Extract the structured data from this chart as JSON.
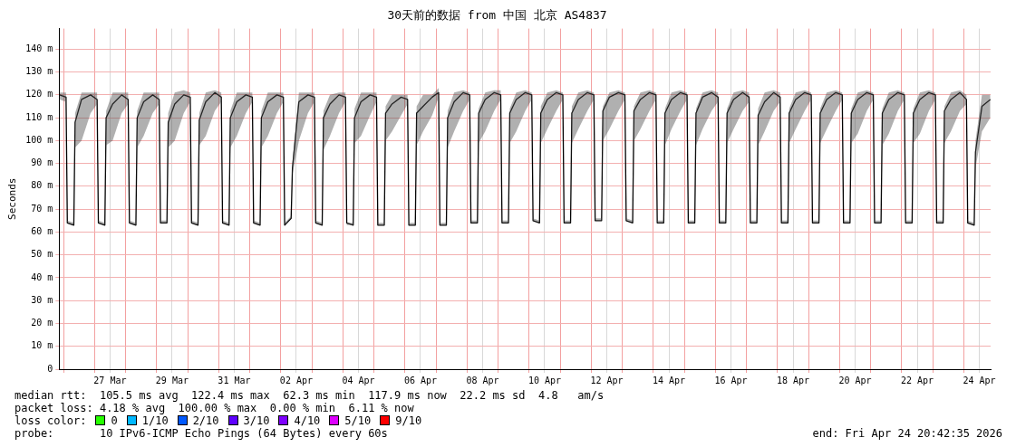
{
  "chart_data": {
    "type": "line",
    "title": "30天前的数据 from 中国 北京 AS4837",
    "ylabel": "Seconds",
    "xlim": [
      "2026-03-25T20:42",
      "2026-04-24T20:42"
    ],
    "xticks": [
      {
        "value": "2026-03-26",
        "label": null
      },
      {
        "value": "2026-03-27",
        "label": null
      },
      {
        "value": "2026-03-27T12:00",
        "label": "27 Mar"
      },
      {
        "value": "2026-03-28",
        "label": null
      },
      {
        "value": "2026-03-29",
        "label": null
      },
      {
        "value": "2026-03-29T12:00",
        "label": "29 Mar"
      },
      {
        "value": "2026-03-30",
        "label": null
      },
      {
        "value": "2026-03-31",
        "label": null
      },
      {
        "value": "2026-03-31T12:00",
        "label": "31 Mar"
      },
      {
        "value": "2026-04-01",
        "label": null
      },
      {
        "value": "2026-04-02",
        "label": null
      },
      {
        "value": "2026-04-02T12:00",
        "label": "02 Apr"
      },
      {
        "value": "2026-04-03",
        "label": null
      },
      {
        "value": "2026-04-04",
        "label": null
      },
      {
        "value": "2026-04-04T12:00",
        "label": "04 Apr"
      },
      {
        "value": "2026-04-05",
        "label": null
      },
      {
        "value": "2026-04-06",
        "label": null
      },
      {
        "value": "2026-04-06T12:00",
        "label": "06 Apr"
      },
      {
        "value": "2026-04-07",
        "label": null
      },
      {
        "value": "2026-04-08",
        "label": null
      },
      {
        "value": "2026-04-08T12:00",
        "label": "08 Apr"
      },
      {
        "value": "2026-04-09",
        "label": null
      },
      {
        "value": "2026-04-10",
        "label": null
      },
      {
        "value": "2026-04-10T12:00",
        "label": "10 Apr"
      },
      {
        "value": "2026-04-11",
        "label": null
      },
      {
        "value": "2026-04-12",
        "label": null
      },
      {
        "value": "2026-04-12T12:00",
        "label": "12 Apr"
      },
      {
        "value": "2026-04-13",
        "label": null
      },
      {
        "value": "2026-04-14",
        "label": null
      },
      {
        "value": "2026-04-14T12:00",
        "label": "14 Apr"
      },
      {
        "value": "2026-04-15",
        "label": null
      },
      {
        "value": "2026-04-16",
        "label": null
      },
      {
        "value": "2026-04-16T12:00",
        "label": "16 Apr"
      },
      {
        "value": "2026-04-17",
        "label": null
      },
      {
        "value": "2026-04-18",
        "label": null
      },
      {
        "value": "2026-04-18T12:00",
        "label": "18 Apr"
      },
      {
        "value": "2026-04-19",
        "label": null
      },
      {
        "value": "2026-04-20",
        "label": null
      },
      {
        "value": "2026-04-20T12:00",
        "label": "20 Apr"
      },
      {
        "value": "2026-04-21",
        "label": null
      },
      {
        "value": "2026-04-22",
        "label": null
      },
      {
        "value": "2026-04-22T12:00",
        "label": "22 Apr"
      },
      {
        "value": "2026-04-23",
        "label": null
      },
      {
        "value": "2026-04-24",
        "label": null
      },
      {
        "value": "2026-04-24T12:00",
        "label": "24 Apr"
      }
    ],
    "ylim": [
      0,
      149
    ],
    "yticks": [
      0,
      {
        "value": 10,
        "label": "10 m"
      },
      {
        "value": 20,
        "label": "20 m"
      },
      {
        "value": 30,
        "label": "30 m"
      },
      {
        "value": 40,
        "label": "40 m"
      },
      {
        "value": 50,
        "label": "50 m"
      },
      {
        "value": 60,
        "label": "60 m"
      },
      {
        "value": 70,
        "label": "70 m"
      },
      {
        "value": 80,
        "label": "80 m"
      },
      {
        "value": 90,
        "label": "90 m"
      },
      {
        "value": 100,
        "label": "100 m"
      },
      {
        "value": 110,
        "label": "110 m"
      },
      {
        "value": 120,
        "label": "120 m"
      },
      {
        "value": 130,
        "label": "130 m"
      },
      {
        "value": 140,
        "label": "140 m"
      }
    ],
    "grid": true,
    "legend": false,
    "marker": "none",
    "line_style": "solid",
    "x": [
      "2026-03-25T21:00",
      "2026-03-26T02:00",
      "2026-03-26T03:00",
      "2026-03-26T08:00",
      "2026-03-26T09:00",
      "2026-03-26T14:00",
      "2026-03-26T21:00",
      "2026-03-27T02:00",
      "2026-03-27T03:00",
      "2026-03-27T08:00",
      "2026-03-27T09:00",
      "2026-03-27T14:00",
      "2026-03-27T21:00",
      "2026-03-28T02:00",
      "2026-03-28T03:00",
      "2026-03-28T08:00",
      "2026-03-28T09:00",
      "2026-03-28T14:00",
      "2026-03-28T21:00",
      "2026-03-29T02:00",
      "2026-03-29T03:00",
      "2026-03-29T08:00",
      "2026-03-29T09:00",
      "2026-03-29T14:00",
      "2026-03-29T21:00",
      "2026-03-30T02:00",
      "2026-03-30T03:00",
      "2026-03-30T08:00",
      "2026-03-30T09:00",
      "2026-03-30T14:00",
      "2026-03-30T21:00",
      "2026-03-31T02:00",
      "2026-03-31T03:00",
      "2026-03-31T08:00",
      "2026-03-31T09:00",
      "2026-03-31T14:00",
      "2026-03-31T21:00",
      "2026-04-01T02:00",
      "2026-04-01T03:00",
      "2026-04-01T08:00",
      "2026-04-01T09:00",
      "2026-04-01T14:00",
      "2026-04-01T21:00",
      "2026-04-02T02:00",
      "2026-04-02T03:00",
      "2026-04-02T08:00",
      "2026-04-02T09:00",
      "2026-04-02T14:00",
      "2026-04-02T21:00",
      "2026-04-03T02:00",
      "2026-04-03T03:00",
      "2026-04-03T08:00",
      "2026-04-03T09:00",
      "2026-04-03T14:00",
      "2026-04-03T21:00",
      "2026-04-04T02:00",
      "2026-04-04T03:00",
      "2026-04-04T08:00",
      "2026-04-04T09:00",
      "2026-04-04T14:00",
      "2026-04-04T21:00",
      "2026-04-05T02:00",
      "2026-04-05T03:00",
      "2026-04-05T08:00",
      "2026-04-05T09:00",
      "2026-04-05T14:00",
      "2026-04-05T21:00",
      "2026-04-06T02:00",
      "2026-04-06T03:00",
      "2026-04-06T08:00",
      "2026-04-06T09:00",
      "2026-04-06T14:00",
      "2026-04-06T21:00",
      "2026-04-07T02:00",
      "2026-04-07T03:00",
      "2026-04-07T08:00",
      "2026-04-07T09:00",
      "2026-04-07T14:00",
      "2026-04-07T21:00",
      "2026-04-08T02:00",
      "2026-04-08T03:00",
      "2026-04-08T08:00",
      "2026-04-08T09:00",
      "2026-04-08T14:00",
      "2026-04-08T21:00",
      "2026-04-09T02:00",
      "2026-04-09T03:00",
      "2026-04-09T08:00",
      "2026-04-09T09:00",
      "2026-04-09T14:00",
      "2026-04-09T21:00",
      "2026-04-10T02:00",
      "2026-04-10T03:00",
      "2026-04-10T08:00",
      "2026-04-10T09:00",
      "2026-04-10T14:00",
      "2026-04-10T21:00",
      "2026-04-11T02:00",
      "2026-04-11T03:00",
      "2026-04-11T08:00",
      "2026-04-11T09:00",
      "2026-04-11T14:00",
      "2026-04-11T21:00",
      "2026-04-12T02:00",
      "2026-04-12T03:00",
      "2026-04-12T08:00",
      "2026-04-12T09:00",
      "2026-04-12T14:00",
      "2026-04-12T21:00",
      "2026-04-13T02:00",
      "2026-04-13T03:00",
      "2026-04-13T08:00",
      "2026-04-13T09:00",
      "2026-04-13T14:00",
      "2026-04-13T21:00",
      "2026-04-14T02:00",
      "2026-04-14T03:00",
      "2026-04-14T08:00",
      "2026-04-14T09:00",
      "2026-04-14T14:00",
      "2026-04-14T21:00",
      "2026-04-15T02:00",
      "2026-04-15T03:00",
      "2026-04-15T08:00",
      "2026-04-15T09:00",
      "2026-04-15T14:00",
      "2026-04-15T21:00",
      "2026-04-16T02:00",
      "2026-04-16T03:00",
      "2026-04-16T08:00",
      "2026-04-16T09:00",
      "2026-04-16T14:00",
      "2026-04-16T21:00",
      "2026-04-17T02:00",
      "2026-04-17T03:00",
      "2026-04-17T08:00",
      "2026-04-17T09:00",
      "2026-04-17T14:00",
      "2026-04-17T21:00",
      "2026-04-18T02:00",
      "2026-04-18T03:00",
      "2026-04-18T08:00",
      "2026-04-18T09:00",
      "2026-04-18T14:00",
      "2026-04-18T21:00",
      "2026-04-19T02:00",
      "2026-04-19T03:00",
      "2026-04-19T08:00",
      "2026-04-19T09:00",
      "2026-04-19T14:00",
      "2026-04-19T21:00",
      "2026-04-20T02:00",
      "2026-04-20T03:00",
      "2026-04-20T08:00",
      "2026-04-20T09:00",
      "2026-04-20T14:00",
      "2026-04-20T21:00",
      "2026-04-21T02:00",
      "2026-04-21T03:00",
      "2026-04-21T08:00",
      "2026-04-21T09:00",
      "2026-04-21T14:00",
      "2026-04-21T21:00",
      "2026-04-22T02:00",
      "2026-04-22T03:00",
      "2026-04-22T08:00",
      "2026-04-22T09:00",
      "2026-04-22T14:00",
      "2026-04-22T21:00",
      "2026-04-23T02:00",
      "2026-04-23T03:00",
      "2026-04-23T08:00",
      "2026-04-23T09:00",
      "2026-04-23T14:00",
      "2026-04-23T21:00",
      "2026-04-24T02:00",
      "2026-04-24T03:00",
      "2026-04-24T08:00",
      "2026-04-24T09:00",
      "2026-04-24T14:00",
      "2026-04-24T20:30"
    ],
    "series": [
      {
        "color": "#000000",
        "values": [
          120,
          119,
          64,
          63,
          108,
          118,
          120,
          118,
          64,
          63,
          110,
          116,
          120,
          118,
          64,
          63,
          110,
          117,
          120,
          118,
          64,
          64,
          108,
          116,
          120,
          119,
          64,
          63,
          109,
          117,
          121,
          119,
          64,
          63,
          110,
          117,
          120,
          119,
          64,
          63,
          110,
          117,
          120,
          119,
          63,
          66,
          88,
          117,
          120,
          119,
          64,
          63,
          110,
          116,
          120,
          119,
          64,
          63,
          110,
          117,
          120,
          119,
          63,
          63,
          112,
          116,
          119,
          118,
          63,
          63,
          112,
          115,
          119,
          121,
          63,
          63,
          110,
          117,
          121,
          120,
          64,
          64,
          112,
          118,
          121,
          120,
          64,
          64,
          112,
          118,
          121,
          120,
          65,
          64,
          112,
          118,
          121,
          120,
          64,
          64,
          112,
          118,
          121,
          120,
          65,
          65,
          113,
          119,
          121,
          120,
          65,
          64,
          113,
          118,
          121,
          120,
          64,
          64,
          112,
          118,
          121,
          120,
          64,
          64,
          112,
          119,
          121,
          119,
          64,
          64,
          112,
          118,
          121,
          119,
          64,
          64,
          111,
          117,
          121,
          119,
          64,
          64,
          112,
          118,
          121,
          120,
          64,
          64,
          112,
          118,
          121,
          120,
          64,
          64,
          112,
          118,
          121,
          120,
          64,
          64,
          112,
          118,
          121,
          120,
          64,
          64,
          112,
          118,
          121,
          120,
          64,
          64,
          113,
          118,
          121,
          118,
          64,
          63,
          95,
          115,
          118
        ],
        "lower": [
          118,
          117,
          64,
          63,
          97,
          100,
          112,
          116,
          64,
          63,
          98,
          100,
          112,
          116,
          64,
          63,
          97,
          102,
          112,
          116,
          64,
          64,
          97,
          100,
          112,
          117,
          64,
          63,
          98,
          102,
          113,
          117,
          64,
          63,
          97,
          102,
          112,
          117,
          64,
          63,
          97,
          102,
          112,
          117,
          63,
          66,
          85,
          100,
          112,
          117,
          64,
          63,
          96,
          102,
          112,
          117,
          63,
          63,
          99,
          102,
          111,
          117,
          63,
          63,
          100,
          104,
          111,
          116,
          63,
          63,
          98,
          104,
          111,
          119,
          63,
          63,
          97,
          104,
          113,
          118,
          64,
          64,
          99,
          104,
          113,
          118,
          64,
          64,
          99,
          104,
          113,
          118,
          65,
          64,
          99,
          105,
          113,
          118,
          64,
          64,
          99,
          105,
          113,
          118,
          65,
          65,
          100,
          105,
          113,
          118,
          65,
          64,
          100,
          105,
          113,
          118,
          64,
          64,
          98,
          105,
          113,
          118,
          64,
          64,
          98,
          105,
          113,
          117,
          64,
          64,
          99,
          105,
          113,
          117,
          64,
          64,
          98,
          104,
          113,
          117,
          64,
          64,
          99,
          105,
          113,
          118,
          64,
          64,
          99,
          105,
          113,
          118,
          64,
          64,
          99,
          103,
          113,
          118,
          64,
          64,
          98,
          103,
          113,
          118,
          64,
          64,
          99,
          103,
          113,
          118,
          64,
          64,
          99,
          104,
          113,
          116,
          64,
          63,
          88,
          104,
          110
        ],
        "upper": [
          121,
          121,
          65,
          64,
          112,
          121,
          121,
          121,
          65,
          64,
          113,
          121,
          121,
          121,
          65,
          64,
          113,
          121,
          121,
          121,
          65,
          65,
          112,
          121,
          122,
          121,
          65,
          64,
          112,
          121,
          122,
          121,
          65,
          64,
          113,
          121,
          121,
          121,
          65,
          64,
          113,
          121,
          121,
          121,
          64,
          67,
          90,
          121,
          121,
          121,
          65,
          64,
          113,
          120,
          121,
          121,
          64,
          64,
          114,
          121,
          121,
          121,
          64,
          64,
          115,
          120,
          120,
          120,
          64,
          64,
          115,
          120,
          120,
          123,
          64,
          64,
          113,
          121,
          122,
          121,
          65,
          65,
          114,
          121,
          122,
          122,
          65,
          65,
          114,
          121,
          122,
          121,
          66,
          65,
          115,
          121,
          122,
          121,
          65,
          65,
          115,
          121,
          122,
          121,
          66,
          66,
          115,
          121,
          122,
          121,
          66,
          65,
          115,
          121,
          122,
          121,
          65,
          65,
          114,
          121,
          122,
          121,
          65,
          65,
          114,
          121,
          122,
          121,
          65,
          65,
          114,
          121,
          122,
          121,
          65,
          65,
          114,
          121,
          122,
          121,
          65,
          65,
          114,
          121,
          122,
          121,
          65,
          65,
          114,
          121,
          122,
          121,
          65,
          65,
          114,
          121,
          122,
          121,
          65,
          65,
          114,
          121,
          122,
          121,
          65,
          65,
          114,
          121,
          122,
          121,
          65,
          65,
          115,
          121,
          122,
          120,
          65,
          64,
          100,
          120,
          120
        ]
      }
    ],
    "annotations": [
      "median rtt:  105.5 ms avg  122.4 ms max  62.3 ms min  117.9 ms now  22.2 ms sd  4.8   am/s",
      "packet loss: 4.18 % avg  100.00 % max  0.00 % min  6.11 % now",
      "loss color:  0  1/10  2/10  3/10  4/10  5/10  9/10",
      "probe:       10 IPv6-ICMP Echo Pings (64 Bytes) every 60s",
      "end: Fri Apr 24 20:42:35 2026"
    ]
  }
}
